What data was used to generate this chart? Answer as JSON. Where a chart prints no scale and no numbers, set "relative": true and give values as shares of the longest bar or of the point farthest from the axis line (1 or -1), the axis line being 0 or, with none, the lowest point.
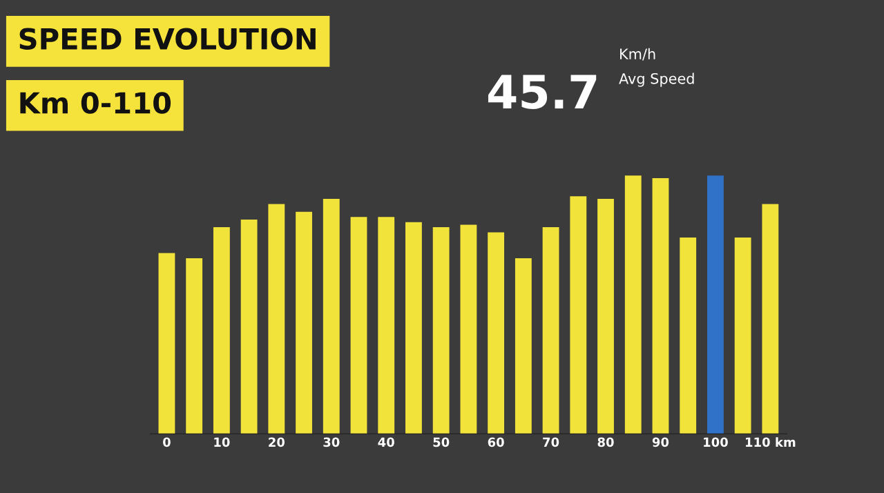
{
  "chart_data": {
    "type": "bar",
    "title": "SPEED EVOLUTION",
    "subtitle": "Km 0-110",
    "relative": true,
    "categories": [
      "0",
      null,
      "10",
      null,
      "20",
      null,
      "30",
      null,
      "40",
      null,
      "50",
      null,
      "60",
      null,
      "70",
      null,
      "80",
      null,
      "90",
      null,
      "100",
      null,
      "110 km"
    ],
    "values": [
      0.7,
      0.68,
      0.8,
      0.83,
      0.89,
      0.86,
      0.91,
      0.84,
      0.84,
      0.82,
      0.8,
      0.81,
      0.78,
      0.68,
      0.8,
      0.92,
      0.91,
      1.0,
      0.99,
      0.76,
      1.0,
      0.76,
      0.89
    ],
    "colors": [
      "#f2e33a",
      "#f2e33a",
      "#f2e33a",
      "#f2e33a",
      "#f2e33a",
      "#f2e33a",
      "#f2e33a",
      "#f2e33a",
      "#f2e33a",
      "#f2e33a",
      "#f2e33a",
      "#f2e33a",
      "#f2e33a",
      "#f2e33a",
      "#f2e33a",
      "#f2e33a",
      "#f2e33a",
      "#f2e33a",
      "#f2e33a",
      "#f2e33a",
      "#2f72c8",
      "#f2e33a",
      "#f2e33a"
    ],
    "annotations": [
      "45.7",
      "Km/h",
      "Avg Speed"
    ]
  }
}
